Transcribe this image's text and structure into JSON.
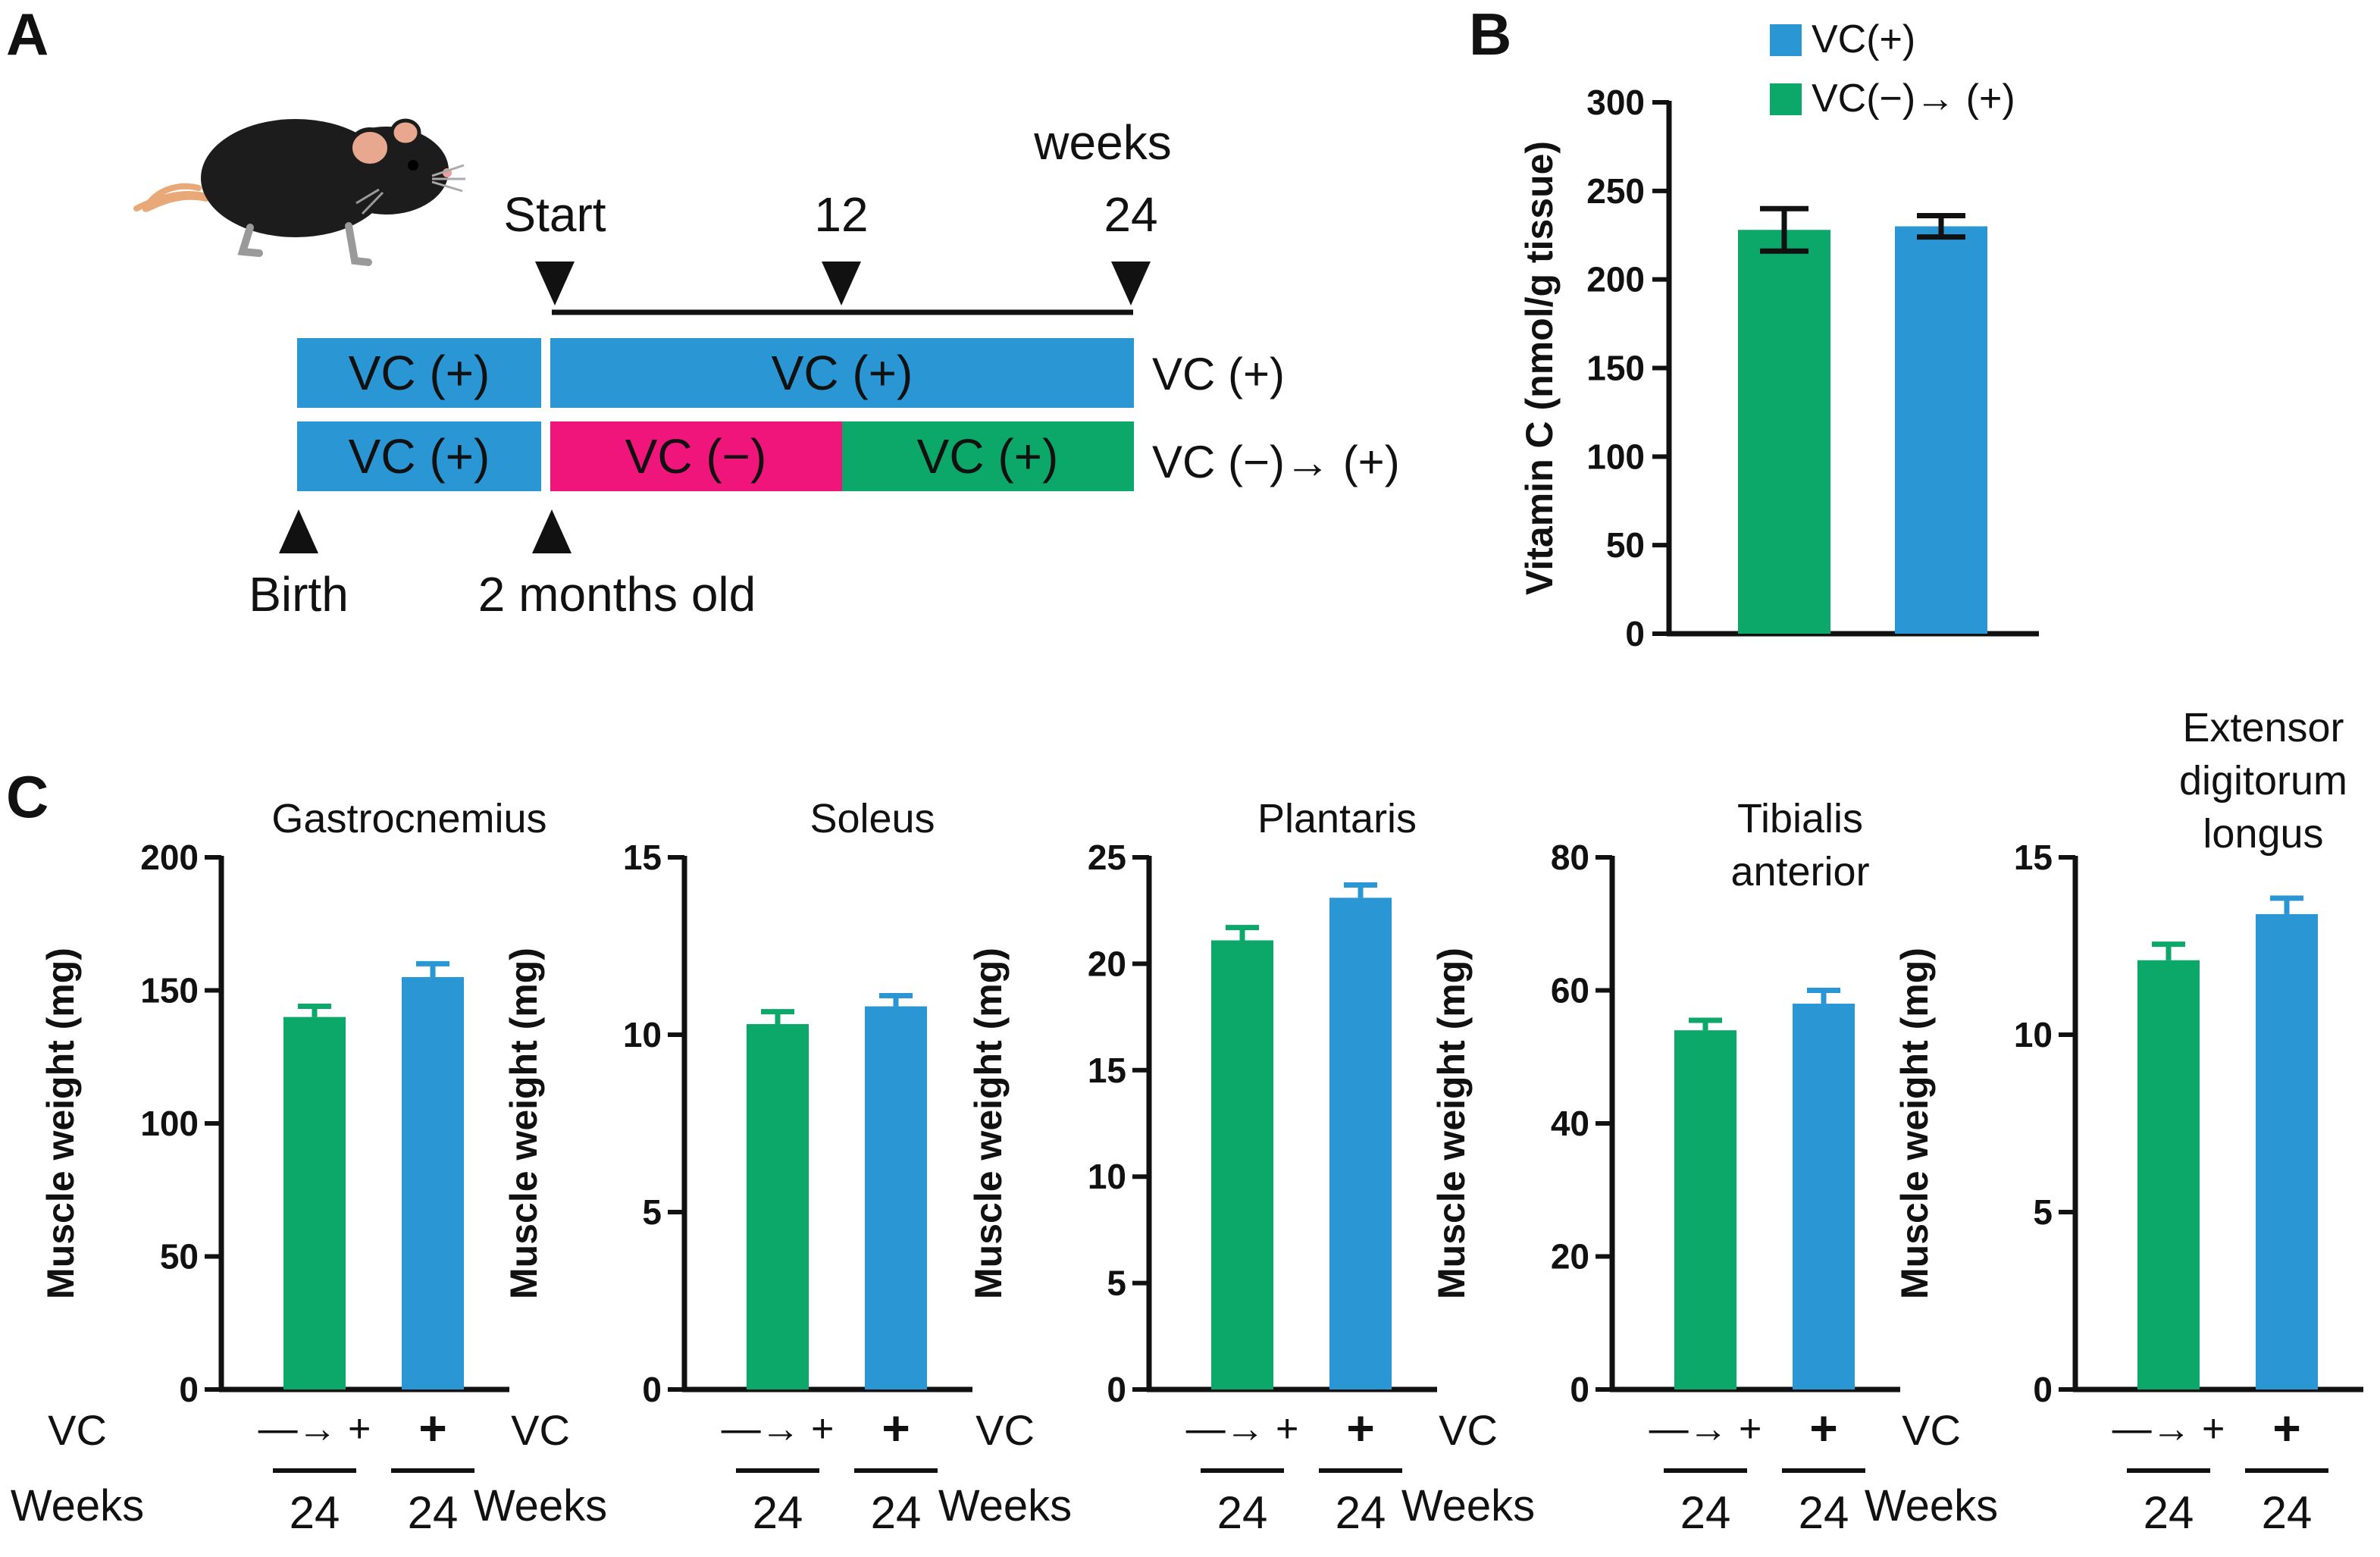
{
  "panels": {
    "a": "A",
    "b": "B",
    "c": "C"
  },
  "colors": {
    "vc_plus": "#2a96d4",
    "vc_minus": "#f0157a",
    "vc_green": "#0ba86a",
    "axis": "#111111"
  },
  "timeline": {
    "weeks_label": "weeks",
    "ticks": [
      {
        "label": "Start",
        "week": 0
      },
      {
        "label": "12",
        "week": 12
      },
      {
        "label": "24",
        "week": 24
      }
    ],
    "birth_label": "Birth",
    "two_months_label": "2 months old",
    "row1": {
      "pre": "VC (+)",
      "main": "VC (+)",
      "group": "VC (+)"
    },
    "row2": {
      "pre": "VC (+)",
      "first": "VC (−)",
      "second": "VC (+)",
      "group": "VC (−)→ (+)"
    }
  },
  "chart_data": [
    {
      "id": "B",
      "type": "bar",
      "title": "",
      "ylabel": "Vitamin C (nmol/g tissue)",
      "ylim": [
        0,
        300
      ],
      "yticks": [
        0,
        50,
        100,
        150,
        200,
        250,
        300
      ],
      "legend": [
        {
          "name": "VC(+)",
          "color": "#2a96d4"
        },
        {
          "name": "VC(−)→ (+)",
          "color": "#0ba86a"
        }
      ],
      "categories": [
        "VC(−)→ (+)",
        "VC(+)"
      ],
      "values": [
        228,
        230
      ],
      "errors": [
        12,
        6
      ],
      "colors": [
        "#0ba86a",
        "#2a96d4"
      ]
    },
    {
      "id": "C1",
      "type": "bar",
      "title": "Gastrocnemius",
      "ylabel": "Muscle weight (mg)",
      "ylim": [
        0,
        200
      ],
      "yticks": [
        0,
        50,
        100,
        150,
        200
      ],
      "vc_row": {
        "label": "VC",
        "group1": "—→ +",
        "group2": "+"
      },
      "weeks_row": {
        "label": "Weeks",
        "group1": "24",
        "group2": "24"
      },
      "values": [
        140,
        155
      ],
      "errors": [
        4,
        5
      ],
      "colors": [
        "#0ba86a",
        "#2a96d4"
      ]
    },
    {
      "id": "C2",
      "type": "bar",
      "title": "Soleus",
      "ylabel": "Muscle weight (mg)",
      "ylim": [
        0,
        15
      ],
      "yticks": [
        0,
        5,
        10,
        15
      ],
      "vc_row": {
        "label": "VC",
        "group1": "—→ +",
        "group2": "+"
      },
      "weeks_row": {
        "label": "Weeks",
        "group1": "24",
        "group2": "24"
      },
      "values": [
        10.3,
        10.8
      ],
      "errors": [
        0.35,
        0.3
      ],
      "colors": [
        "#0ba86a",
        "#2a96d4"
      ]
    },
    {
      "id": "C3",
      "type": "bar",
      "title": "Plantaris",
      "ylabel": "Muscle weight (mg)",
      "ylim": [
        0,
        25
      ],
      "yticks": [
        0,
        5,
        10,
        15,
        20,
        25
      ],
      "vc_row": {
        "label": "VC",
        "group1": "—→ +",
        "group2": "+"
      },
      "weeks_row": {
        "label": "Weeks",
        "group1": "24",
        "group2": "24"
      },
      "values": [
        21.1,
        23.1
      ],
      "errors": [
        0.6,
        0.6
      ],
      "colors": [
        "#0ba86a",
        "#2a96d4"
      ]
    },
    {
      "id": "C4",
      "type": "bar",
      "title": "Tibialis anterior",
      "title_lines": [
        "Tibialis",
        "anterior"
      ],
      "ylabel": "Muscle weight (mg)",
      "ylim": [
        0,
        80
      ],
      "yticks": [
        0,
        20,
        40,
        60,
        80
      ],
      "vc_row": {
        "label": "VC",
        "group1": "—→ +",
        "group2": "+"
      },
      "weeks_row": {
        "label": "Weeks",
        "group1": "24",
        "group2": "24"
      },
      "values": [
        54,
        58
      ],
      "errors": [
        1.5,
        2
      ],
      "colors": [
        "#0ba86a",
        "#2a96d4"
      ]
    },
    {
      "id": "C5",
      "type": "bar",
      "title": "Extensor digitorum longus",
      "title_lines": [
        "Extensor",
        "digitorum",
        "longus"
      ],
      "ylabel": "Muscle weight (mg)",
      "ylim": [
        0,
        15
      ],
      "yticks": [
        0,
        5,
        10,
        15
      ],
      "vc_row": {
        "label": "VC",
        "group1": "—→ +",
        "group2": "+"
      },
      "weeks_row": {
        "label": "Weeks",
        "group1": "24",
        "group2": "24"
      },
      "values": [
        12.1,
        13.4
      ],
      "errors": [
        0.45,
        0.45
      ],
      "colors": [
        "#0ba86a",
        "#2a96d4"
      ]
    }
  ]
}
